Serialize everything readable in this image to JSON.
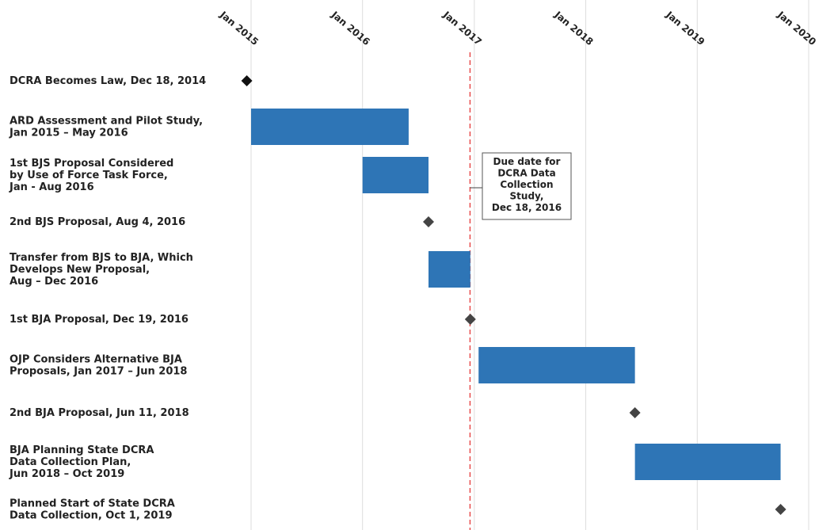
{
  "chart_data": {
    "type": "gantt",
    "x_axis": {
      "type": "date",
      "ticks": [
        "Jan 2015",
        "Jan 2016",
        "Jan 2017",
        "Jan 2018",
        "Jan 2019",
        "Jan 2020"
      ],
      "tick_dates": [
        "2015-01-01",
        "2016-01-01",
        "2017-01-01",
        "2018-01-01",
        "2019-01-01",
        "2020-01-01"
      ],
      "position": "top",
      "grid": true
    },
    "tasks": [
      {
        "label": "DCRA Becomes Law, Dec 18, 2014",
        "kind": "milestone",
        "date": "2014-12-18",
        "color": "#111111"
      },
      {
        "label": "ARD Assessment and Pilot Study,\nJan 2015 – May 2016",
        "kind": "bar",
        "start": "2015-01-01",
        "end": "2016-05-31",
        "color": "#2e75b6"
      },
      {
        "label": "1st BJS Proposal Considered\nby Use of Force Task Force,\nJan - Aug 2016",
        "kind": "bar",
        "start": "2016-01-01",
        "end": "2016-08-04",
        "color": "#2e75b6"
      },
      {
        "label": "2nd BJS Proposal, Aug 4, 2016",
        "kind": "milestone",
        "date": "2016-08-04",
        "color": "#444444"
      },
      {
        "label": "Transfer from BJS to BJA, Which\nDevelops New Proposal,\nAug – Dec 2016",
        "kind": "bar",
        "start": "2016-08-04",
        "end": "2016-12-19",
        "color": "#2e75b6"
      },
      {
        "label": "1st BJA Proposal, Dec 19, 2016",
        "kind": "milestone",
        "date": "2016-12-19",
        "color": "#444444"
      },
      {
        "label": "OJP Considers Alternative BJA\nProposals, Jan 2017 – Jun 2018",
        "kind": "bar",
        "start": "2017-01-15",
        "end": "2018-06-11",
        "color": "#2e75b6"
      },
      {
        "label": "2nd BJA Proposal, Jun 11, 2018",
        "kind": "milestone",
        "date": "2018-06-11",
        "color": "#444444"
      },
      {
        "label": "BJA Planning State DCRA\nData Collection Plan,\nJun 2018 – Oct 2019",
        "kind": "bar",
        "start": "2018-06-11",
        "end": "2019-10-01",
        "color": "#2e75b6"
      },
      {
        "label": "Planned Start of State DCRA\nData Collection, Oct 1, 2019",
        "kind": "milestone",
        "date": "2019-10-01",
        "color": "#444444"
      }
    ],
    "reference_line": {
      "date": "2016-12-18",
      "color": "#e74c4c",
      "style": "dashed"
    },
    "annotation": {
      "text": "Due date for\nDCRA Data\nCollection\nStudy,\nDec 18, 2016",
      "anchor_date": "2016-12-18"
    }
  }
}
